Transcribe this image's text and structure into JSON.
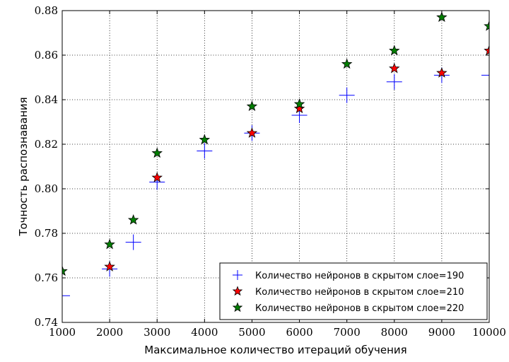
{
  "chart_data": {
    "type": "scatter",
    "title": "",
    "xlabel": "Максимальное количество итераций обучения",
    "ylabel": "Точность распознавания",
    "xlim": [
      1000,
      10000
    ],
    "ylim": [
      0.74,
      0.88
    ],
    "xticks": [
      "1000",
      "2000",
      "3000",
      "4000",
      "5000",
      "6000",
      "7000",
      "8000",
      "9000",
      "10000"
    ],
    "yticks": [
      "0.74",
      "0.76",
      "0.78",
      "0.80",
      "0.82",
      "0.84",
      "0.86",
      "0.88"
    ],
    "grid": true,
    "legend_position": "lower-right",
    "series": [
      {
        "name": "Количество нейронов в скрытом слое=190",
        "marker": "plus",
        "color": "#0000ff",
        "points": [
          [
            1000,
            0.752
          ],
          [
            2000,
            0.764
          ],
          [
            2500,
            0.776
          ],
          [
            3000,
            0.803
          ],
          [
            4000,
            0.817
          ],
          [
            5000,
            0.825
          ],
          [
            6000,
            0.833
          ],
          [
            7000,
            0.842
          ],
          [
            8000,
            0.848
          ],
          [
            9000,
            0.851
          ],
          [
            10000,
            0.851
          ]
        ]
      },
      {
        "name": "Количество нейронов в скрытом слое=210",
        "marker": "star",
        "color": "#ff0000",
        "points": [
          [
            2000,
            0.765
          ],
          [
            3000,
            0.805
          ],
          [
            5000,
            0.825
          ],
          [
            6000,
            0.836
          ],
          [
            8000,
            0.854
          ],
          [
            9000,
            0.852
          ],
          [
            10000,
            0.862
          ]
        ]
      },
      {
        "name": "Количество нейронов в скрытом слое=220",
        "marker": "star",
        "color": "#007f00",
        "points": [
          [
            1000,
            0.763
          ],
          [
            2000,
            0.775
          ],
          [
            2500,
            0.786
          ],
          [
            3000,
            0.816
          ],
          [
            4000,
            0.822
          ],
          [
            5000,
            0.837
          ],
          [
            6000,
            0.838
          ],
          [
            7000,
            0.856
          ],
          [
            8000,
            0.862
          ],
          [
            9000,
            0.877
          ],
          [
            10000,
            0.873
          ]
        ]
      }
    ]
  }
}
